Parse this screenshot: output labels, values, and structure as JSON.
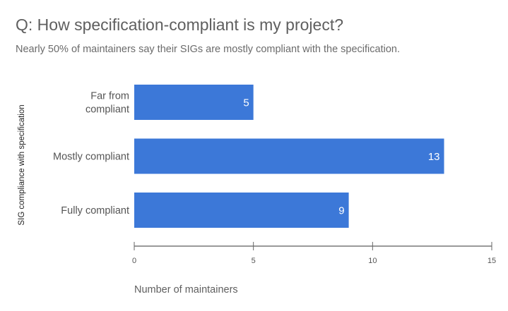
{
  "chart_data": {
    "type": "bar",
    "orientation": "horizontal",
    "title": "Q: How specification-compliant is my project?",
    "subtitle": "Nearly 50% of maintainers say their SIGs are mostly compliant with the specification.",
    "categories": [
      [
        "Far from",
        "compliant"
      ],
      [
        "Mostly compliant"
      ],
      [
        "Fully compliant"
      ]
    ],
    "values": [
      5,
      13,
      9
    ],
    "data_labels": [
      "5",
      "13",
      "9"
    ],
    "xlabel": "Number of maintainers",
    "ylabel": "SIG compliance with specification",
    "xlim": [
      0,
      15
    ],
    "xticks": [
      0,
      5,
      10,
      15
    ],
    "xtick_labels": [
      "0",
      "5",
      "10",
      "15"
    ],
    "grid": false,
    "legend": "none",
    "bar_color": "#3c78d8"
  }
}
